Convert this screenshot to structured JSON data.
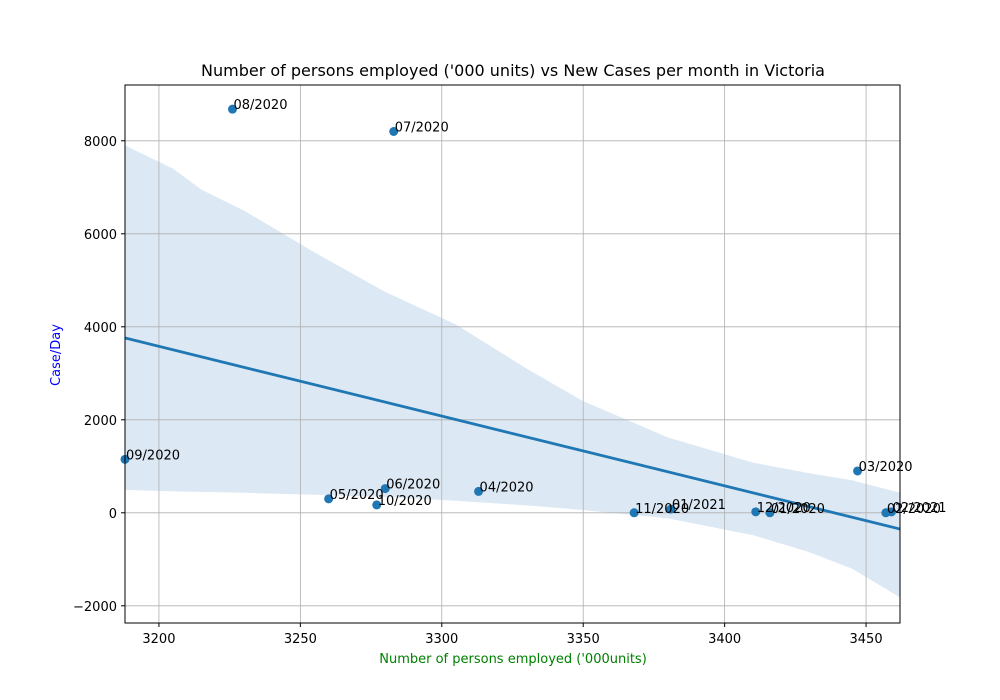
{
  "chart_data": {
    "type": "scatter",
    "title": "Number of persons employed ('000 units) vs New Cases per month in Victoria",
    "xlabel": "Number of persons employed ('000units)",
    "ylabel": "Case/Day",
    "xlabel_color": "#008000",
    "ylabel_color": "#0000ff",
    "xlim": [
      3188,
      3462
    ],
    "ylim": [
      -2370,
      9200
    ],
    "x_ticks": [
      3200,
      3250,
      3300,
      3350,
      3400,
      3450
    ],
    "y_ticks": [
      -2000,
      0,
      2000,
      4000,
      6000,
      8000
    ],
    "x_tick_labels": [
      "3200",
      "3250",
      "3300",
      "3350",
      "3400",
      "3450"
    ],
    "y_tick_labels": [
      "−2000",
      "0",
      "2000",
      "4000",
      "6000",
      "8000"
    ],
    "grid": true,
    "point_color": "#1f77b4",
    "band_color": "#dce8f3",
    "points": [
      {
        "label": "08/2020",
        "x": 3226,
        "y": 8680
      },
      {
        "label": "07/2020",
        "x": 3283,
        "y": 8200
      },
      {
        "label": "09/2020",
        "x": 3188,
        "y": 1150
      },
      {
        "label": "05/2020",
        "x": 3260,
        "y": 300
      },
      {
        "label": "06/2020",
        "x": 3280,
        "y": 520
      },
      {
        "label": "10/2020",
        "x": 3277,
        "y": 170
      },
      {
        "label": "04/2020",
        "x": 3313,
        "y": 460
      },
      {
        "label": "11/2020",
        "x": 3368,
        "y": 0
      },
      {
        "label": "01/2021",
        "x": 3381,
        "y": 80
      },
      {
        "label": "12/2020",
        "x": 3411,
        "y": 20
      },
      {
        "label": "01/2020",
        "x": 3416,
        "y": 0
      },
      {
        "label": "03/2020",
        "x": 3447,
        "y": 900
      },
      {
        "label": "02/2020",
        "x": 3457,
        "y": 0
      },
      {
        "label": "02/2021",
        "x": 3459,
        "y": 20
      }
    ],
    "regression_line": {
      "x": [
        3188,
        3462
      ],
      "y": [
        3760,
        -350
      ]
    },
    "confidence_band": {
      "x": [
        3188,
        3205,
        3215,
        3230,
        3255,
        3280,
        3305,
        3330,
        3350,
        3380,
        3410,
        3430,
        3445,
        3462
      ],
      "upper": [
        7900,
        7400,
        6950,
        6500,
        5600,
        4750,
        4050,
        3100,
        2400,
        1620,
        1080,
        850,
        700,
        430
      ],
      "lower": [
        490,
        460,
        450,
        430,
        390,
        340,
        260,
        160,
        60,
        -120,
        -480,
        -850,
        -1200,
        -1820
      ]
    }
  }
}
